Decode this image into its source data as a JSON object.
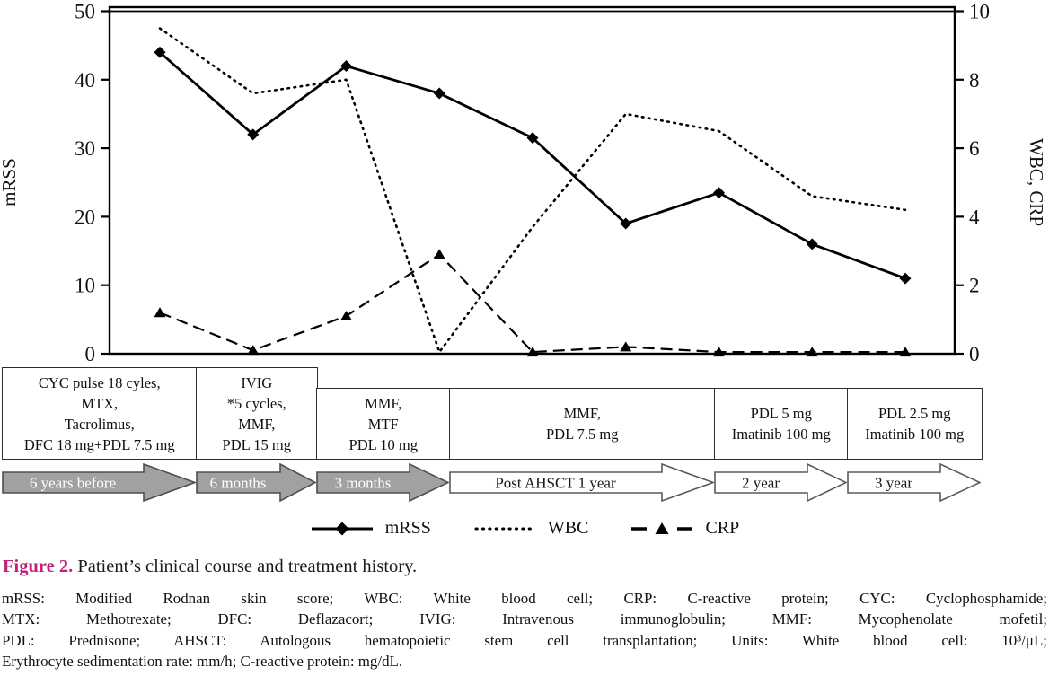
{
  "figure": {
    "caption_label": "Figure 2.",
    "caption_text": "Patient’s clinical course and treatment history."
  },
  "chart_data": {
    "type": "line",
    "title": "",
    "grid": false,
    "legend_position": "bottom",
    "left_axis": {
      "label": "mRSS",
      "min": 0,
      "max": 50,
      "ticks": [
        0,
        10,
        20,
        30,
        40,
        50
      ]
    },
    "right_axis": {
      "label": "WBC, CRP",
      "min": 0,
      "max": 10,
      "ticks": [
        0,
        2,
        4,
        6,
        8,
        10
      ]
    },
    "series": [
      {
        "name": "mRSS",
        "axis": "left",
        "line": "solid",
        "marker": "diamond",
        "color": "#000000",
        "values": [
          44,
          32,
          42,
          38,
          31.5,
          19,
          23.5,
          16,
          11
        ]
      },
      {
        "name": "WBC",
        "axis": "right",
        "line": "dotted",
        "marker": "none",
        "color": "#000000",
        "values": [
          9.5,
          7.6,
          8.0,
          0.05,
          3.7,
          7.0,
          6.5,
          4.6,
          4.2
        ]
      },
      {
        "name": "CRP",
        "axis": "right",
        "line": "dashed",
        "marker": "triangle",
        "color": "#000000",
        "values": [
          1.2,
          0.1,
          1.1,
          2.9,
          0.05,
          0.2,
          0.05,
          0.05,
          0.05
        ]
      }
    ]
  },
  "legend": {
    "items": [
      {
        "label": "mRSS",
        "symbol": "solid-diamond"
      },
      {
        "label": "WBC",
        "symbol": "dotted"
      },
      {
        "label": "CRP",
        "symbol": "dashed-triangle"
      }
    ]
  },
  "treatments": [
    {
      "tall": true,
      "lines": [
        "CYC pulse 18 cyles,",
        "MTX,",
        "Tacrolimus,",
        "DFC 18 mg+PDL 7.5 mg"
      ]
    },
    {
      "tall": true,
      "lines": [
        "IVIG",
        "*5 cycles,",
        "MMF,",
        "PDL 15 mg"
      ]
    },
    {
      "tall": false,
      "lines": [
        "MMF,",
        "MTF",
        "PDL 10 mg"
      ]
    },
    {
      "tall": false,
      "lines": [
        "MMF,",
        "PDL 7.5 mg"
      ]
    },
    {
      "tall": false,
      "lines": [
        "PDL 5 mg",
        "Imatinib 100 mg"
      ]
    },
    {
      "tall": false,
      "lines": [
        "PDL 2.5 mg",
        "Imatinib 100 mg"
      ]
    }
  ],
  "timeline": [
    {
      "label": "6 years before",
      "variant": "gray"
    },
    {
      "label": "6 months",
      "variant": "gray"
    },
    {
      "label": "3 months",
      "variant": "gray"
    },
    {
      "label": "Post AHSCT 1 year",
      "variant": "white"
    },
    {
      "label": "2 year",
      "variant": "white"
    },
    {
      "label": "3 year",
      "variant": "white"
    }
  ],
  "footnote_lines": [
    "mRSS: Modified Rodnan skin score; WBC: White blood cell; CRP: C-reactive protein; CYC: Cyclophosphamide;",
    "MTX: Methotrexate; DFC: Deflazacort; IVIG: Intravenous immunoglobulin; MMF: Mycophenolate mofetil;",
    "PDL: Prednisone; AHSCT: Autologous hematopoietic stem cell transplantation; Units: White blood cell: 10³/μL;",
    "Erythrocyte sedimentation rate: mm/h; C-reactive protein: mg/dL."
  ],
  "colors": {
    "series": "#000000",
    "caption_label": "#c1217a",
    "timeline_gray_fill": "#a1a1a3",
    "timeline_gray_border": "#4e4e52",
    "timeline_gray_text": "#ffffff",
    "timeline_white_fill": "#ffffff",
    "timeline_white_border": "#5a5a5e",
    "timeline_white_text": "#161616"
  }
}
